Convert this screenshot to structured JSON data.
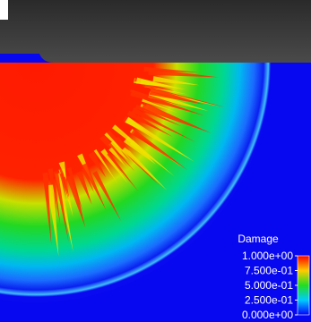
{
  "colorbar": {
    "title": "Damage",
    "ticks": [
      {
        "value": 1,
        "label": "1.000e+00"
      },
      {
        "value": 0.75,
        "label": "7.500e-01"
      },
      {
        "value": 0.5,
        "label": "5.000e-01"
      },
      {
        "value": 0.25,
        "label": "2.500e-01"
      },
      {
        "value": 0,
        "label": "0.000e+00"
      }
    ]
  }
}
